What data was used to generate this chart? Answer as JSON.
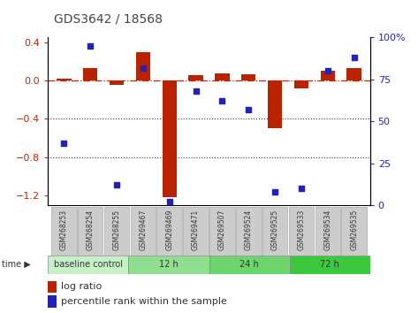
{
  "title": "GDS3642 / 18568",
  "samples": [
    "GSM268253",
    "GSM268254",
    "GSM268255",
    "GSM269467",
    "GSM269469",
    "GSM269471",
    "GSM269507",
    "GSM269524",
    "GSM269525",
    "GSM269533",
    "GSM269534",
    "GSM269535"
  ],
  "log_ratio": [
    0.02,
    0.13,
    -0.04,
    0.3,
    -1.22,
    0.06,
    0.08,
    0.07,
    -0.5,
    -0.08,
    0.1,
    0.13
  ],
  "percentile_rank": [
    37,
    95,
    12,
    82,
    2,
    68,
    62,
    57,
    8,
    10,
    80,
    88
  ],
  "ylim_left": [
    -1.3,
    0.45
  ],
  "ylim_right": [
    0,
    100
  ],
  "yticks_left": [
    -1.2,
    -0.8,
    -0.4,
    0.0,
    0.4
  ],
  "yticks_right": [
    0,
    25,
    50,
    75,
    100
  ],
  "groups": [
    {
      "label": "baseline control",
      "start": 0,
      "end": 3,
      "color": "#c8f0c8"
    },
    {
      "label": "12 h",
      "start": 3,
      "end": 6,
      "color": "#90df90"
    },
    {
      "label": "24 h",
      "start": 6,
      "end": 9,
      "color": "#6ed46e"
    },
    {
      "label": "72 h",
      "start": 9,
      "end": 12,
      "color": "#3cc83c"
    }
  ],
  "bar_color": "#bb2200",
  "dot_color": "#2222bb",
  "zero_line_color": "#cc2200",
  "dotted_line_color": "#333333",
  "bg_plot": "#ffffff",
  "sample_bg": "#cccccc",
  "legend_log_ratio": "log ratio",
  "legend_percentile": "percentile rank within the sample"
}
